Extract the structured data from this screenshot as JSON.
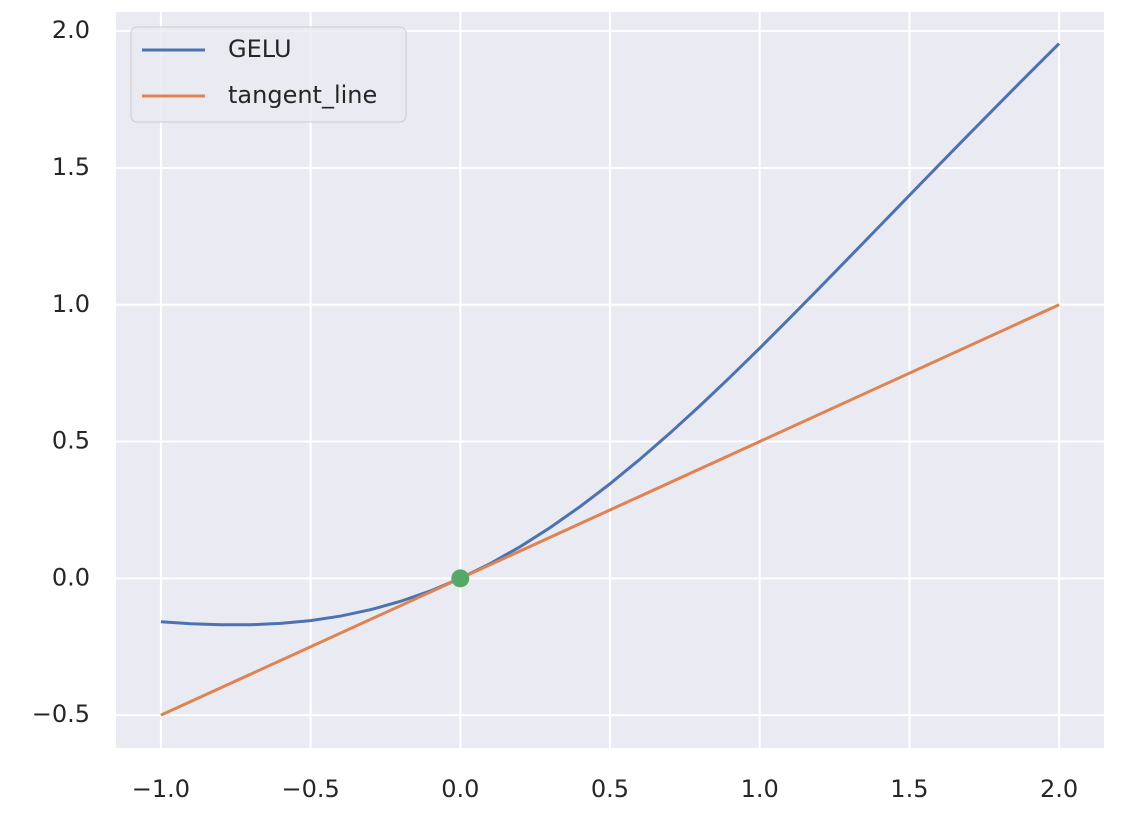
{
  "chart_data": {
    "type": "line",
    "series": [
      {
        "name": "GELU",
        "color": "#4c72b0",
        "x": [
          -1.0,
          -0.9,
          -0.8,
          -0.7,
          -0.6,
          -0.5,
          -0.4,
          -0.3,
          -0.2,
          -0.1,
          0.0,
          0.1,
          0.2,
          0.3,
          0.4,
          0.5,
          0.6,
          0.7,
          0.8,
          0.9,
          1.0,
          1.1,
          1.2,
          1.3,
          1.4,
          1.5,
          1.6,
          1.7,
          1.8,
          1.9,
          2.0
        ],
        "values": [
          -0.1587,
          -0.1657,
          -0.1695,
          -0.1694,
          -0.1646,
          -0.1543,
          -0.1378,
          -0.1146,
          -0.0841,
          -0.046,
          0.0,
          0.054,
          0.1159,
          0.1854,
          0.2622,
          0.3457,
          0.4354,
          0.5306,
          0.6305,
          0.7343,
          0.8413,
          0.9507,
          1.0619,
          1.1742,
          1.2869,
          1.3998,
          1.5123,
          1.6242,
          1.7354,
          1.8455,
          1.9545
        ]
      },
      {
        "name": "tangent_line",
        "color": "#dd8452",
        "x": [
          -1.0,
          2.0
        ],
        "values": [
          -0.5,
          1.0
        ]
      }
    ],
    "points": {
      "x": [
        0.0
      ],
      "values": [
        0.0
      ],
      "color": "#55a868"
    },
    "xlim": [
      -1.15,
      2.15
    ],
    "ylim": [
      -0.62,
      2.07
    ],
    "xticks": [
      {
        "value": -1.0,
        "label": "−1.0"
      },
      {
        "value": -0.5,
        "label": "−0.5"
      },
      {
        "value": 0.0,
        "label": "0.0"
      },
      {
        "value": 0.5,
        "label": "0.5"
      },
      {
        "value": 1.0,
        "label": "1.0"
      },
      {
        "value": 1.5,
        "label": "1.5"
      },
      {
        "value": 2.0,
        "label": "2.0"
      }
    ],
    "yticks": [
      {
        "value": -0.5,
        "label": "−0.5"
      },
      {
        "value": 0.0,
        "label": "0.0"
      },
      {
        "value": 0.5,
        "label": "0.5"
      },
      {
        "value": 1.0,
        "label": "1.0"
      },
      {
        "value": 1.5,
        "label": "1.5"
      },
      {
        "value": 2.0,
        "label": "2.0"
      }
    ],
    "grid": true,
    "legend": "upper left"
  }
}
